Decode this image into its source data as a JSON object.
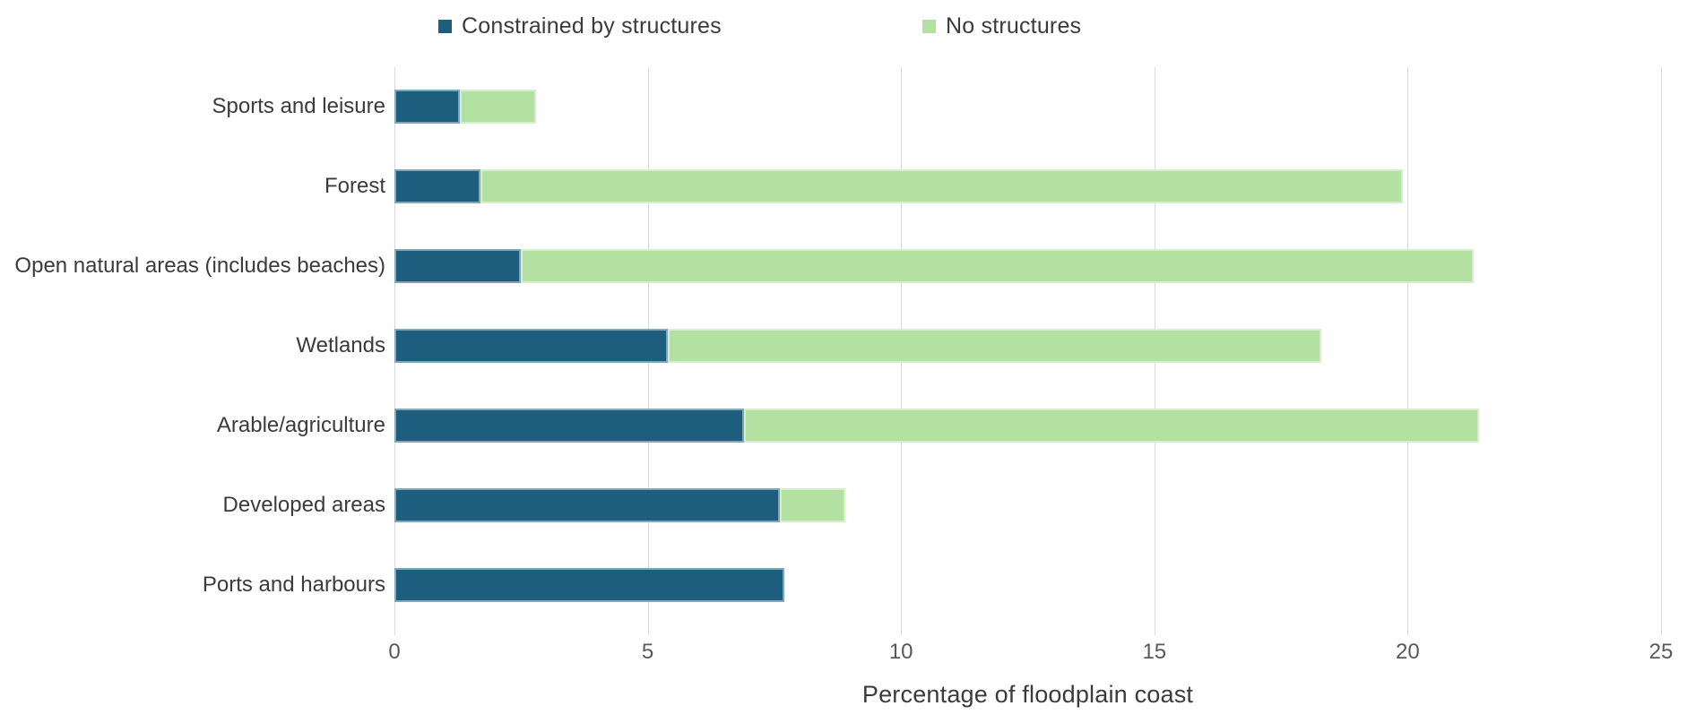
{
  "chart_data": {
    "type": "bar",
    "orientation": "horizontal",
    "stacked": true,
    "title": "",
    "xlabel": "Percentage of floodplain coast",
    "ylabel": "",
    "xlim": [
      0,
      25
    ],
    "xticks": [
      0,
      5,
      10,
      15,
      20,
      25
    ],
    "grid": "vertical",
    "legend_position": "top",
    "categories": [
      "Sports and leisure",
      "Forest",
      "Open natural areas (includes beaches)",
      "Wetlands",
      "Arable/agriculture",
      "Developed areas",
      "Ports and harbours"
    ],
    "series": [
      {
        "name": "Constrained by structures",
        "color": "#1d5e7e",
        "values": [
          1.3,
          1.7,
          2.5,
          5.4,
          6.9,
          7.6,
          7.7
        ]
      },
      {
        "name": "No structures",
        "color": "#b3e1a2",
        "values": [
          1.5,
          18.2,
          18.8,
          12.9,
          14.5,
          1.3,
          0
        ]
      }
    ]
  },
  "colors": {
    "series_constrained": "#1d5e7e",
    "series_no_structures": "#b3e1a2",
    "gridline": "#d9d9d9",
    "category_text": "#3b3b3b",
    "tick_text": "#595959"
  }
}
